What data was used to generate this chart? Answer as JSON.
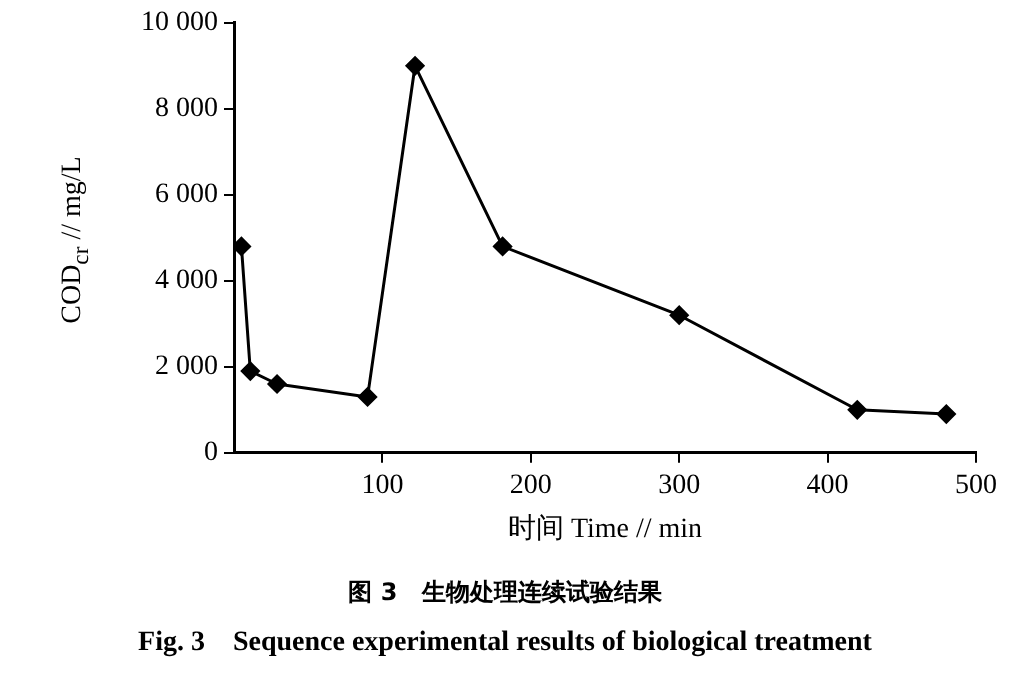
{
  "chart_data": {
    "type": "line",
    "title": "图 3　生物处理连续试验结果",
    "subtitle": "Fig. 3　Sequence experimental results of biological treatment",
    "xlabel": "时间 Time // min",
    "ylabel": "COD$_{cr}$ // mg/L",
    "x": [
      5,
      11,
      29,
      90,
      122,
      181,
      300,
      420,
      480
    ],
    "series": [
      {
        "color": "#000000",
        "values": [
          4800,
          1900,
          1600,
          1300,
          9000,
          4800,
          3200,
          1000,
          900
        ]
      }
    ],
    "xlim": [
      0,
      500
    ],
    "xticks": [
      100,
      200,
      300,
      400,
      500
    ],
    "ylim": [
      0,
      10000
    ],
    "yticks": [
      0,
      {
        "value": 2000,
        "label": "2 000"
      },
      {
        "value": 4000,
        "label": "4 000"
      },
      {
        "value": 6000,
        "label": "6 000"
      },
      {
        "value": 8000,
        "label": "8 000"
      },
      {
        "value": 10000,
        "label": "10 000"
      }
    ],
    "grid": false,
    "legend": false,
    "marker": "diamond",
    "line_style": "solid"
  }
}
